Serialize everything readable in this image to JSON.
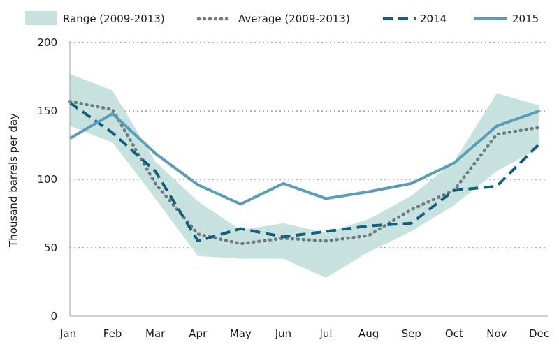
{
  "chart_data": {
    "type": "line",
    "title": "",
    "xlabel": "",
    "ylabel": "Thousand barrels per day",
    "categories": [
      "Jan",
      "Feb",
      "Mar",
      "Apr",
      "May",
      "Jun",
      "Jul",
      "Aug",
      "Sep",
      "Oct",
      "Nov",
      "Dec"
    ],
    "ylim": [
      0,
      200
    ],
    "yticks": [
      0,
      50,
      100,
      150,
      200
    ],
    "grid": "horizontal-dotted",
    "legend_position": "top",
    "range": {
      "name": "Range (2009-2013)",
      "color": "#c8e3df",
      "high": [
        177,
        165,
        113,
        84,
        63,
        68,
        61,
        71,
        88,
        113,
        163,
        154
      ],
      "low": [
        139,
        127,
        86,
        44,
        42,
        42,
        28,
        47,
        62,
        81,
        106,
        123
      ]
    },
    "series": [
      {
        "name": "Average (2009-2013)",
        "color": "#707a81",
        "style": "dotted",
        "values": [
          157,
          151,
          97,
          60,
          53,
          57,
          55,
          59,
          78,
          92,
          133,
          138
        ]
      },
      {
        "name": "2014",
        "color": "#0f5f7e",
        "style": "dashed",
        "values": [
          156,
          134,
          106,
          55,
          64,
          58,
          62,
          66,
          68,
          92,
          95,
          126
        ]
      },
      {
        "name": "2015",
        "color": "#5a9db8",
        "style": "solid",
        "values": [
          130,
          148,
          119,
          96,
          82,
          97,
          86,
          91,
          97,
          112,
          139,
          150
        ]
      }
    ]
  }
}
